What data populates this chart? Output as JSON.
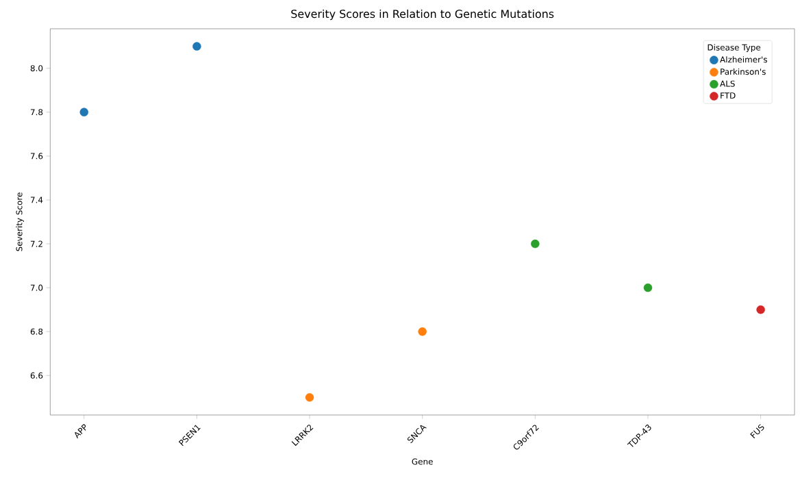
{
  "chart_data": {
    "type": "scatter",
    "title": "Severity Scores in Relation to Genetic Mutations",
    "xlabel": "Gene",
    "ylabel": "Severity Score",
    "legend_title": "Disease Type",
    "categories": [
      "APP",
      "PSEN1",
      "LRRK2",
      "SNCA",
      "C9orf72",
      "TDP-43",
      "FUS"
    ],
    "series": [
      {
        "name": "Alzheimer's",
        "color": "#1f77b4",
        "values": [
          7.8,
          8.1,
          null,
          null,
          null,
          null,
          null
        ]
      },
      {
        "name": "Parkinson's",
        "color": "#ff7f0e",
        "values": [
          null,
          null,
          6.5,
          6.8,
          null,
          null,
          null
        ]
      },
      {
        "name": "ALS",
        "color": "#2ca02c",
        "values": [
          null,
          null,
          null,
          null,
          7.2,
          7.0,
          null
        ]
      },
      {
        "name": "FTD",
        "color": "#d62728",
        "values": [
          null,
          null,
          null,
          null,
          null,
          null,
          6.9
        ]
      }
    ],
    "ylim": [
      6.42,
      8.18
    ],
    "yticks": [
      6.6,
      6.8,
      {
        "value": 7.0,
        "label": "7.0"
      },
      7.2,
      7.4,
      7.6,
      7.8,
      {
        "value": 8.0,
        "label": "8.0"
      }
    ],
    "marker": "circle",
    "legend": "top right",
    "grid": false
  }
}
